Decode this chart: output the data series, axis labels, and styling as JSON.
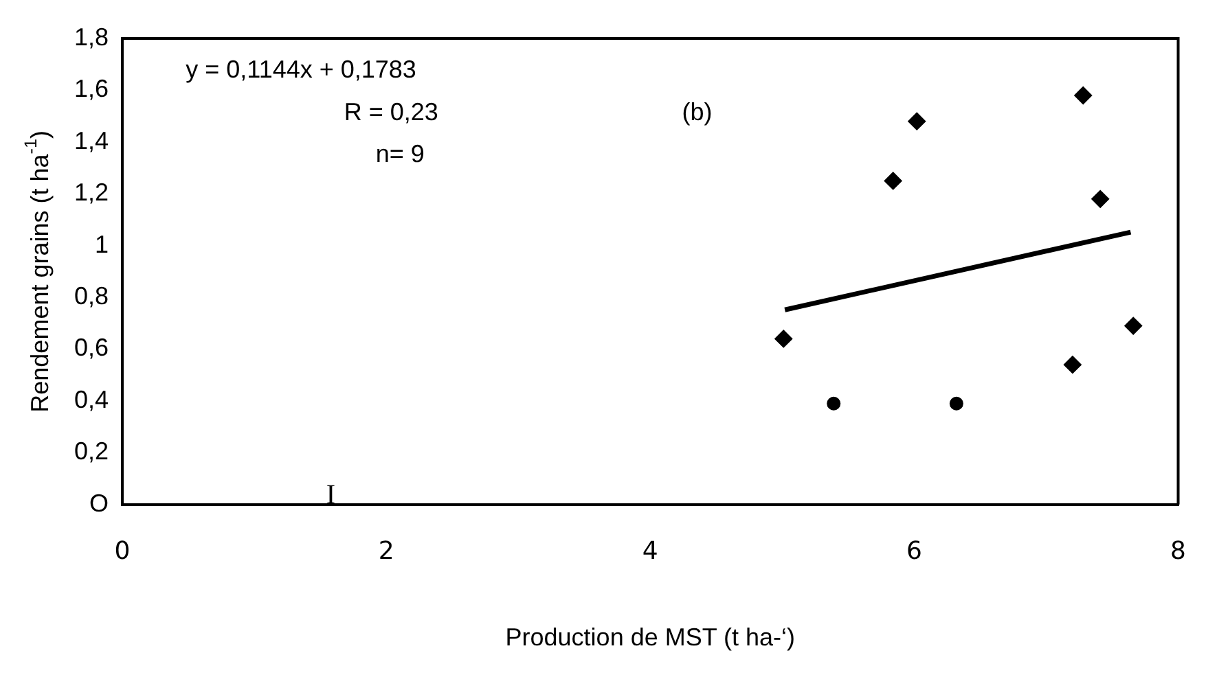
{
  "chart_data": {
    "type": "scatter",
    "xlabel": "Production de MST (t ha-‘)",
    "ylabel": "Rendement grains (t ha$^{-1}$)",
    "annotations": [
      "y = 0,1144x + 0,1783",
      "R = 0,23",
      "n= 9",
      "(b)",
      "I"
    ],
    "series": [
      {
        "marker": "diamond",
        "color": "#000000",
        "x": [
          5.01,
          5.84,
          6.02,
          7.2,
          7.28,
          7.41,
          7.66
        ],
        "values": [
          0.64,
          1.25,
          1.48,
          0.54,
          1.58,
          1.18,
          0.69
        ]
      },
      {
        "marker": "circle",
        "color": "#000000",
        "x": [
          5.39,
          6.32
        ],
        "values": [
          0.39,
          0.39
        ]
      },
      {
        "type": "line",
        "color": "#000000",
        "x": [
          5.02,
          7.64
        ],
        "values": [
          0.752,
          1.052
        ]
      }
    ],
    "xlim": [
      0,
      8
    ],
    "xticks": [
      0,
      2,
      4,
      6,
      8
    ],
    "ylim": [
      0,
      1.8
    ],
    "yticks": [
      {
        "value": 0,
        "label": "O"
      },
      {
        "value": 0.2,
        "label": "0,2"
      },
      {
        "value": 0.4,
        "label": "0,4"
      },
      {
        "value": 0.6,
        "label": "0,6"
      },
      {
        "value": 0.8,
        "label": "0,8"
      },
      {
        "value": 1,
        "label": "1"
      },
      {
        "value": 1.2,
        "label": "1,2"
      },
      {
        "value": 1.4,
        "label": "1,4"
      },
      {
        "value": 1.6,
        "label": "1,6"
      },
      {
        "value": 1.8,
        "label": "1,8"
      }
    ],
    "grid": false,
    "legend": false
  }
}
